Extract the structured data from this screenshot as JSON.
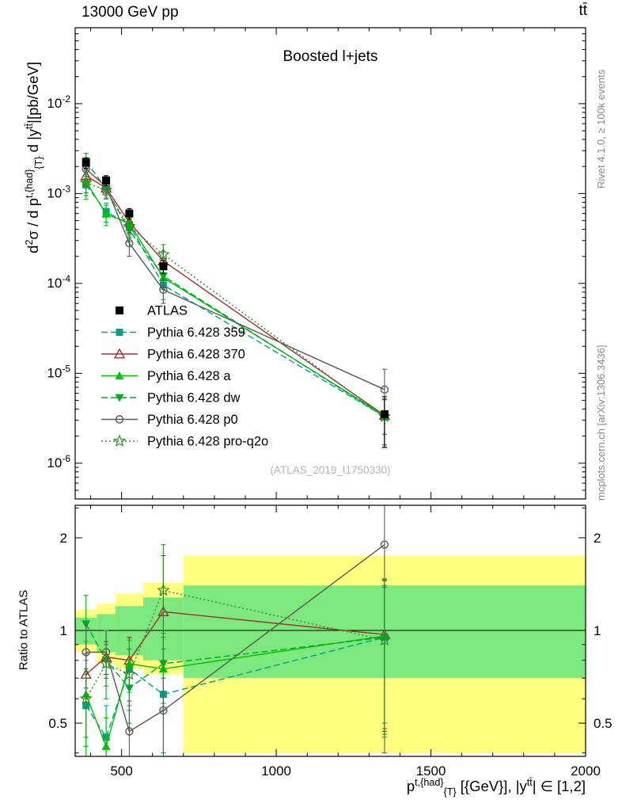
{
  "header": {
    "beam": "13000 GeV pp",
    "process": "tt̄"
  },
  "side_notes": {
    "rivet": "Rivet 4.1.0, ≥ 100k events",
    "mcplots": "mcplots.cern.ch [arXiv:1306.3436]"
  },
  "watermark": "(ATLAS_2019_I1750330)",
  "chart_data": {
    "type": "scatter",
    "title": "Boosted l+jets",
    "x_range": [
      350,
      2000
    ],
    "x_ticks": [
      500,
      1000,
      1500,
      2000
    ],
    "x_minor_step": 100,
    "x": [
      385,
      450,
      525,
      635,
      1350
    ],
    "bin_edges": [
      350,
      420,
      480,
      570,
      700,
      2000
    ],
    "xlabel_segments": [
      {
        "t": "p",
        "s": "n"
      },
      {
        "t": "t,{had}",
        "s": "sup"
      },
      {
        "t": "{T}",
        "s": "sub"
      },
      {
        "t": " [{GeV}], |y",
        "s": "n"
      },
      {
        "t": "tt̄",
        "s": "sup"
      },
      {
        "t": "| ∈ [1,2]",
        "s": "n"
      }
    ],
    "top_panel": {
      "ylabel_segments": [
        {
          "t": "d",
          "s": "n"
        },
        {
          "t": "2",
          "s": "sup"
        },
        {
          "t": "σ / d p",
          "s": "n"
        },
        {
          "t": "t,{had}",
          "s": "sup"
        },
        {
          "t": "{T}",
          "s": "sub"
        },
        {
          "t": " d |y",
          "s": "n"
        },
        {
          "t": "tt̄",
          "s": "sup"
        },
        {
          "t": "|[pb/GeV]",
          "s": "n"
        }
      ],
      "y_range": [
        4e-07,
        0.07
      ],
      "y_decades": [
        -6,
        -5,
        -4,
        -3,
        -2
      ]
    },
    "ratio_panel": {
      "ylabel": "Ratio to ATLAS",
      "y_range": [
        0.39,
        2.55
      ],
      "y_ticks_major": [
        0.5,
        1,
        2
      ],
      "y_ticks_minor": [
        0.4,
        0.6,
        0.7,
        0.8,
        0.9,
        2.5
      ],
      "bands": {
        "yellow_color": "#ffff80",
        "green_color": "#7de87d",
        "yellow": [
          [
            0.85,
            1.17
          ],
          [
            0.78,
            1.22
          ],
          [
            0.75,
            1.32
          ],
          [
            0.72,
            1.43
          ],
          [
            0.4,
            1.75
          ]
        ],
        "green": [
          [
            0.9,
            1.1
          ],
          [
            0.85,
            1.13
          ],
          [
            0.83,
            1.2
          ],
          [
            0.8,
            1.28
          ],
          [
            0.7,
            1.4
          ]
        ]
      }
    },
    "series": [
      {
        "name": "ATLAS",
        "color": "#000000",
        "marker": "square",
        "line": "none",
        "msize": 5,
        "values": [
          0.0022,
          0.0014,
          0.0006,
          0.000155,
          3.5e-06
        ],
        "yerr": [
          0.0003,
          0.00018,
          8e-05,
          2.5e-05,
          2e-06
        ],
        "ratio": null,
        "ratio_err": null
      },
      {
        "name": "Pythia 6.428 359",
        "color": "#00a08c",
        "marker": "square",
        "line": "dashed",
        "msize": 4.5,
        "values": [
          0.00125,
          0.00063,
          0.00045,
          9.6e-05,
          3.3e-06
        ],
        "yerr": [
          0.0003,
          0.00015,
          0.00012,
          3e-05,
          1.8e-06
        ],
        "ratio": [
          0.57,
          0.45,
          0.75,
          0.62,
          0.95
        ],
        "ratio_err": [
          0.15,
          0.12,
          0.2,
          0.25,
          0.45
        ]
      },
      {
        "name": "Pythia 6.428 370",
        "color": "#9c3336",
        "marker": "triangle-open",
        "line": "solid",
        "msize": 6,
        "values": [
          0.00158,
          0.00115,
          0.00048,
          0.000178,
          3.4e-06
        ],
        "yerr": [
          0.00035,
          0.0002,
          0.00011,
          5e-05,
          1.8e-06
        ],
        "ratio": [
          0.72,
          0.82,
          0.8,
          1.15,
          0.97
        ],
        "ratio_err": [
          0.12,
          0.1,
          0.15,
          0.6,
          0.5
        ]
      },
      {
        "name": "Pythia 6.428 a",
        "color": "#00c000",
        "marker": "triangle",
        "line": "solid",
        "msize": 5.5,
        "values": [
          0.00136,
          0.00059,
          0.00047,
          0.000116,
          3.4e-06
        ],
        "yerr": [
          0.0005,
          0.00015,
          0.00012,
          3e-05,
          1.8e-06
        ],
        "ratio": [
          0.62,
          0.42,
          0.78,
          0.75,
          0.96
        ],
        "ratio_err": [
          0.3,
          0.1,
          0.15,
          0.2,
          0.5
        ]
      },
      {
        "name": "Pythia 6.428 dw",
        "color": "#00aa22",
        "marker": "triangle-down",
        "line": "dashed",
        "msize": 5.5,
        "values": [
          0.0023,
          0.00112,
          0.00039,
          0.000121,
          3.3e-06
        ],
        "yerr": [
          0.0005,
          0.00025,
          0.0001,
          3e-05,
          1.8e-06
        ],
        "ratio": [
          1.05,
          0.8,
          0.65,
          0.78,
          0.95
        ],
        "ratio_err": [
          0.25,
          0.2,
          0.15,
          0.2,
          0.5
        ]
      },
      {
        "name": "Pythia 6.428 p0",
        "color": "#5a5a5a",
        "marker": "circle-open",
        "line": "solid",
        "msize": 4.5,
        "values": [
          0.00187,
          0.00119,
          0.00028,
          8.5e-05,
          6.6e-06
        ],
        "yerr": [
          0.0004,
          0.0002,
          8e-05,
          2.5e-05,
          4.5e-06
        ],
        "ratio": [
          0.85,
          0.85,
          0.47,
          0.55,
          1.9
        ],
        "ratio_err": [
          0.2,
          0.15,
          0.12,
          0.15,
          1.5
        ]
      },
      {
        "name": "Pythia 6.428 pro-q2o",
        "color": "#2e8b2e",
        "marker": "star-open",
        "line": "dotted",
        "msize": 6,
        "values": [
          0.00132,
          0.00109,
          0.00043,
          0.00021,
          3.3e-06
        ],
        "yerr": [
          0.0003,
          0.0002,
          0.00011,
          6e-05,
          1.8e-06
        ],
        "ratio": [
          0.6,
          0.78,
          0.72,
          1.35,
          0.93
        ],
        "ratio_err": [
          0.15,
          0.12,
          0.15,
          0.55,
          0.45
        ]
      }
    ]
  }
}
